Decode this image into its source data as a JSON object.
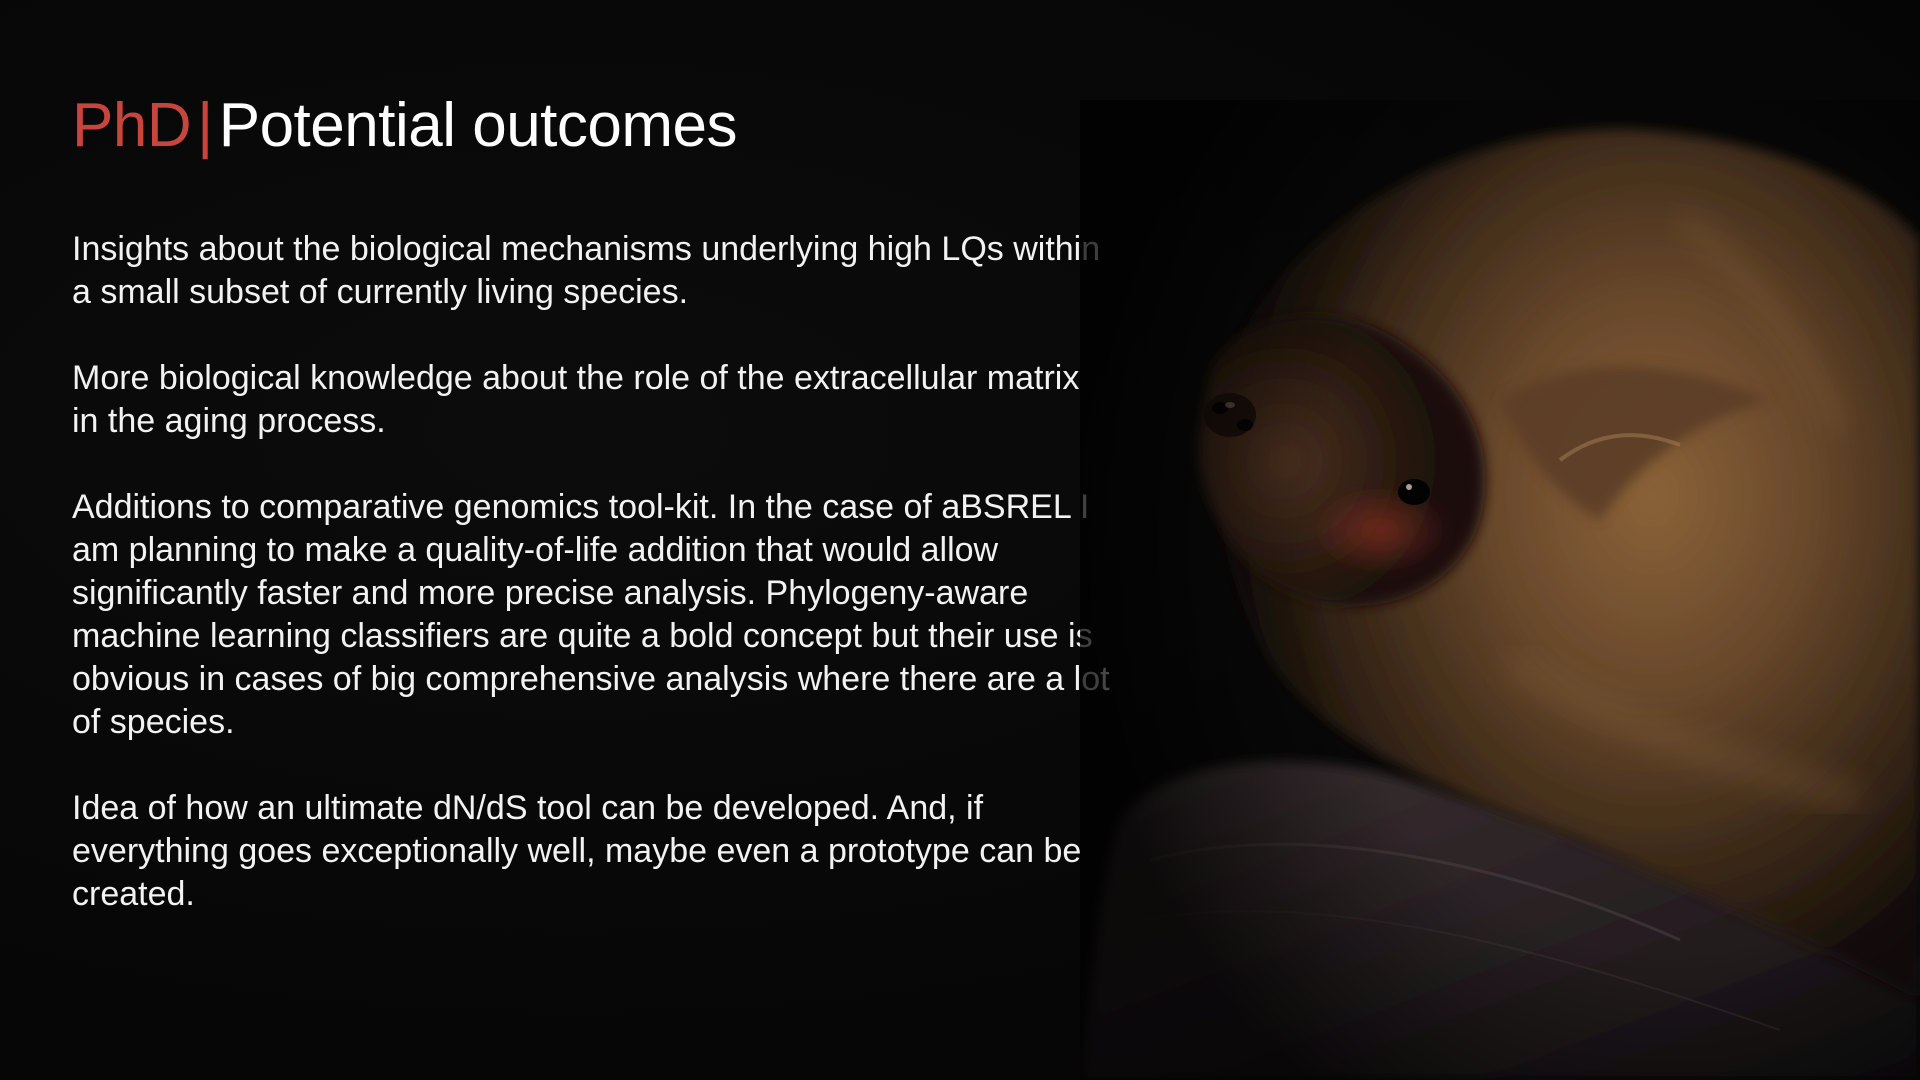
{
  "slide": {
    "title": {
      "accent": "PhD",
      "separator": "|",
      "main": "Potential outcomes"
    },
    "paragraphs": [
      "Insights about the biological mechanisms underlying high LQs within a small subset of currently living species.",
      "More biological knowledge about the role of the extracellular matrix in the aging process.",
      "Additions to comparative genomics tool-kit. In the case of aBSREL I am planning to make a quality-of-life addition that would allow significantly faster and more precise analysis. Phylogeny-aware machine learning classifiers are quite a bold concept but their use is obvious in cases of big comprehensive analysis where there are a lot of species.",
      "Idea of how an ultimate dN/dS tool can be developed. And, if everything goes exceptionally well, maybe even a prototype can be created."
    ]
  },
  "colors": {
    "background": "#070707",
    "accent": "#c8453d",
    "text": "#f2f2f2",
    "fur": "#6b4a2c"
  },
  "image": {
    "icon": "bat-photo"
  }
}
